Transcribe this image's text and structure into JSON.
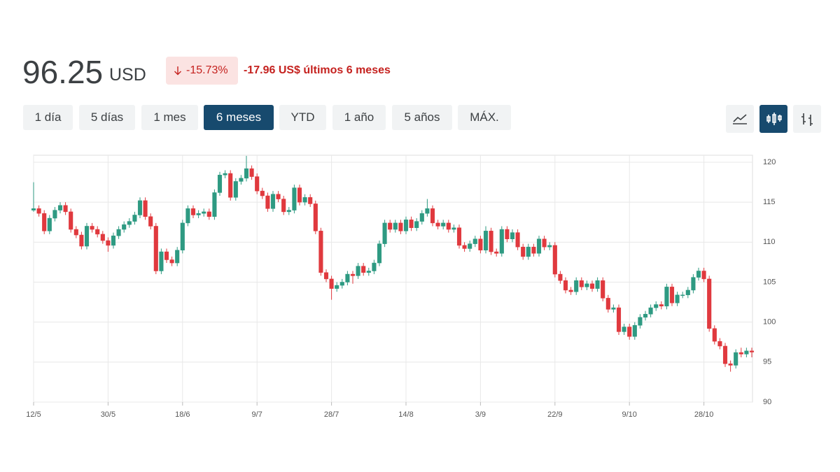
{
  "header": {
    "price": "96.25",
    "currency": "USD",
    "change_percent": "-15.73%",
    "change_value": "-17.96",
    "change_label": "US$ últimos 6 meses"
  },
  "range_buttons": [
    "1 día",
    "5 días",
    "1 mes",
    "6 meses",
    "YTD",
    "1 año",
    "5 años",
    "MÁX."
  ],
  "chart_data": {
    "type": "candlestick",
    "categories": [
      "12/5",
      null,
      null,
      null,
      null,
      null,
      null,
      null,
      null,
      null,
      null,
      null,
      null,
      null,
      "30/5",
      null,
      null,
      null,
      null,
      null,
      null,
      null,
      null,
      null,
      null,
      null,
      null,
      null,
      "18/6",
      null,
      null,
      null,
      null,
      null,
      null,
      null,
      null,
      null,
      null,
      null,
      null,
      null,
      "9/7",
      null,
      null,
      null,
      null,
      null,
      null,
      null,
      null,
      null,
      null,
      null,
      null,
      null,
      "28/7",
      null,
      null,
      null,
      null,
      null,
      null,
      null,
      null,
      null,
      null,
      null,
      null,
      null,
      "14/8",
      null,
      null,
      null,
      null,
      null,
      null,
      null,
      null,
      null,
      null,
      null,
      null,
      null,
      "3/9",
      null,
      null,
      null,
      null,
      null,
      null,
      null,
      null,
      null,
      null,
      null,
      null,
      null,
      "22/9",
      null,
      null,
      null,
      null,
      null,
      null,
      null,
      null,
      null,
      null,
      null,
      null,
      null,
      "9/10",
      null,
      null,
      null,
      null,
      null,
      null,
      null,
      null,
      null,
      null,
      null,
      null,
      null,
      "28/10",
      null,
      null,
      null,
      null,
      null,
      null,
      null,
      null,
      null
    ],
    "open": [
      114.0,
      114.2,
      113.6,
      111.4,
      113.0,
      114.0,
      114.6,
      113.8,
      111.6,
      110.9,
      109.5,
      112.0,
      111.6,
      111.0,
      110.2,
      109.6,
      110.8,
      111.6,
      112.2,
      112.6,
      113.4,
      115.2,
      113.2,
      112.0,
      106.4,
      108.8,
      107.8,
      107.4,
      109.0,
      112.4,
      114.2,
      113.4,
      113.6,
      113.8,
      113.2,
      116.2,
      118.4,
      118.6,
      115.6,
      117.6,
      118.0,
      119.2,
      118.2,
      116.4,
      115.8,
      114.2,
      116.0,
      115.4,
      113.8,
      114.0,
      116.8,
      115.0,
      115.6,
      114.8,
      111.4,
      106.2,
      105.4,
      104.2,
      104.6,
      105.0,
      106.0,
      105.8,
      107.0,
      106.2,
      106.4,
      107.4,
      109.8,
      112.4,
      111.6,
      112.4,
      111.4,
      112.8,
      111.8,
      112.6,
      113.6,
      114.2,
      112.4,
      112.0,
      112.4,
      111.6,
      111.8,
      109.6,
      109.2,
      109.8,
      110.4,
      109.0,
      111.4,
      108.8,
      108.6,
      111.6,
      110.4,
      111.2,
      109.4,
      108.2,
      109.4,
      108.6,
      110.4,
      109.4,
      109.6,
      106.0,
      105.2,
      104.0,
      103.8,
      105.2,
      104.4,
      104.8,
      104.2,
      105.2,
      103.0,
      101.6,
      101.8,
      98.8,
      99.4,
      98.2,
      99.6,
      100.6,
      101.0,
      101.8,
      102.2,
      102.0,
      104.4,
      102.4,
      103.4,
      103.4,
      104.0,
      105.6,
      106.4,
      105.4,
      99.2,
      97.6,
      97.0,
      94.8,
      94.6,
      96.2,
      96.0,
      96.4
    ],
    "high": [
      117.5,
      114.6,
      114.0,
      113.4,
      114.4,
      115.0,
      115.0,
      114.2,
      112.0,
      111.3,
      112.4,
      112.4,
      112.0,
      111.4,
      110.6,
      111.2,
      112.0,
      112.6,
      113.0,
      113.8,
      115.6,
      115.6,
      113.6,
      112.4,
      109.2,
      109.2,
      108.2,
      109.4,
      112.8,
      114.6,
      114.6,
      114.0,
      114.2,
      114.2,
      116.6,
      118.8,
      119.0,
      119.0,
      118.0,
      118.4,
      120.8,
      119.6,
      118.6,
      116.8,
      116.2,
      116.4,
      116.4,
      115.8,
      114.4,
      117.2,
      117.2,
      116.0,
      116.0,
      115.2,
      111.8,
      106.6,
      105.8,
      105.0,
      105.4,
      106.4,
      106.4,
      107.4,
      107.4,
      106.8,
      107.8,
      110.2,
      112.8,
      112.8,
      112.8,
      112.8,
      113.2,
      113.2,
      113.0,
      114.0,
      115.4,
      114.6,
      112.8,
      112.8,
      112.8,
      112.2,
      112.2,
      110.0,
      110.2,
      110.8,
      110.8,
      112.0,
      111.8,
      109.2,
      112.0,
      112.0,
      111.6,
      111.6,
      109.8,
      109.8,
      109.8,
      110.8,
      110.8,
      110.0,
      110.0,
      106.4,
      105.6,
      104.4,
      105.6,
      105.6,
      105.2,
      105.2,
      105.6,
      105.6,
      103.4,
      102.2,
      102.2,
      99.8,
      99.8,
      100.0,
      101.0,
      101.4,
      102.2,
      102.6,
      102.6,
      104.8,
      104.8,
      103.8,
      103.8,
      104.4,
      106.0,
      106.8,
      106.8,
      105.8,
      99.6,
      98.0,
      97.4,
      95.2,
      96.6,
      96.8,
      96.8,
      96.8
    ],
    "low": [
      113.8,
      113.2,
      111.0,
      111.0,
      112.6,
      113.6,
      113.4,
      111.2,
      110.5,
      109.1,
      109.1,
      111.2,
      110.6,
      109.8,
      108.8,
      109.2,
      110.4,
      111.2,
      111.8,
      112.2,
      113.0,
      112.8,
      111.6,
      106.0,
      106.0,
      107.4,
      107.0,
      107.0,
      108.6,
      112.0,
      113.0,
      113.0,
      113.2,
      112.8,
      112.8,
      115.8,
      118.0,
      115.2,
      115.2,
      117.2,
      117.6,
      117.8,
      116.0,
      115.4,
      113.8,
      113.8,
      115.0,
      113.4,
      113.4,
      113.6,
      114.6,
      114.6,
      114.4,
      111.0,
      105.8,
      105.0,
      102.8,
      103.8,
      104.2,
      104.6,
      104.8,
      105.4,
      105.8,
      105.8,
      106.0,
      107.0,
      109.4,
      111.2,
      111.2,
      111.0,
      111.0,
      111.4,
      111.4,
      112.2,
      113.2,
      112.0,
      111.6,
      111.6,
      111.2,
      111.2,
      109.2,
      108.8,
      108.8,
      109.4,
      108.6,
      108.6,
      108.4,
      108.2,
      108.2,
      110.0,
      110.0,
      109.0,
      107.8,
      107.8,
      108.2,
      108.2,
      109.0,
      109.0,
      105.6,
      104.8,
      103.6,
      103.4,
      103.4,
      104.0,
      104.0,
      103.8,
      103.8,
      102.6,
      101.2,
      101.2,
      98.4,
      98.4,
      97.8,
      97.8,
      99.2,
      100.2,
      100.6,
      101.4,
      101.6,
      101.6,
      102.0,
      102.0,
      103.0,
      103.0,
      103.6,
      105.2,
      105.0,
      98.8,
      97.2,
      96.6,
      94.4,
      93.8,
      94.2,
      95.6,
      95.6,
      95.6
    ],
    "close": [
      114.2,
      113.6,
      111.4,
      113.0,
      114.0,
      114.6,
      113.8,
      111.6,
      110.9,
      109.5,
      112.0,
      111.6,
      111.0,
      110.2,
      109.6,
      110.8,
      111.6,
      112.2,
      112.6,
      113.4,
      115.2,
      113.2,
      112.0,
      106.4,
      108.8,
      107.8,
      107.4,
      109.0,
      112.4,
      114.2,
      113.4,
      113.6,
      113.8,
      113.2,
      116.2,
      118.4,
      118.6,
      115.6,
      117.6,
      118.0,
      119.2,
      118.2,
      116.4,
      115.8,
      114.2,
      116.0,
      115.4,
      113.8,
      114.0,
      116.8,
      115.0,
      115.6,
      114.8,
      111.4,
      106.2,
      105.4,
      104.2,
      104.6,
      105.0,
      106.0,
      105.8,
      107.0,
      106.2,
      106.4,
      107.4,
      109.8,
      112.4,
      111.6,
      112.4,
      111.4,
      112.8,
      111.8,
      112.6,
      113.6,
      114.2,
      112.4,
      112.0,
      112.4,
      111.6,
      111.8,
      109.6,
      109.2,
      109.8,
      110.4,
      109.0,
      111.4,
      108.8,
      108.6,
      111.6,
      110.4,
      111.2,
      109.4,
      108.2,
      109.4,
      108.6,
      110.4,
      109.4,
      109.6,
      106.0,
      105.2,
      104.0,
      103.8,
      105.2,
      104.4,
      104.8,
      104.2,
      105.2,
      103.0,
      101.6,
      101.8,
      98.8,
      99.4,
      98.2,
      99.6,
      100.6,
      101.0,
      101.8,
      102.2,
      102.0,
      104.4,
      102.4,
      103.4,
      103.4,
      104.0,
      105.6,
      106.4,
      105.4,
      99.2,
      97.6,
      97.0,
      94.8,
      94.6,
      96.2,
      96.0,
      96.4,
      96.25
    ],
    "up_color": "#2e9a82",
    "down_color": "#e0393e",
    "ylim": [
      90,
      120
    ],
    "yticks": [
      90,
      95,
      100,
      105,
      110,
      115,
      120
    ],
    "grid": true
  }
}
